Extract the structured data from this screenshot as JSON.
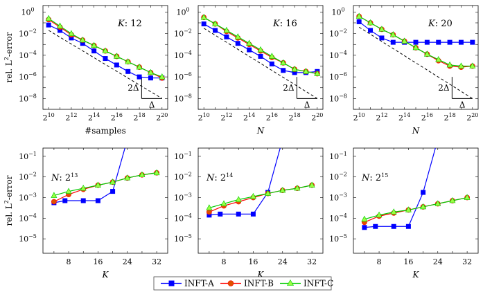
{
  "chart_data": [
    {
      "type": "line",
      "row": "top",
      "xscale": "log2",
      "yscale": "log10",
      "x": [
        10,
        11,
        12,
        13,
        14,
        15,
        16,
        17,
        18,
        19,
        20
      ],
      "xticks": [
        10,
        12,
        14,
        16,
        18,
        20
      ],
      "xtick_labels": [
        "2",
        "2",
        "2",
        "2",
        "2",
        "2"
      ],
      "xtick_sups": [
        "10",
        "12",
        "14",
        "16",
        "18",
        "20"
      ],
      "yticks": [
        0,
        -2,
        -4,
        -6,
        -8
      ],
      "ytick_labels": [
        "10",
        "10",
        "10",
        "10",
        "10"
      ],
      "ytick_sups": [
        "0",
        "−2",
        "−4",
        "−6",
        "−8"
      ],
      "xlim": [
        9.5,
        20.5
      ],
      "ylim": [
        -9,
        0.6
      ],
      "ylabel": "rel. L",
      "ylabel_sup": "2",
      "ylabel_suffix": "-error",
      "xlabel": "#samples",
      "xlabel_italic": false,
      "annotation": {
        "name": "K",
        "value": "12"
      },
      "series": [
        {
          "name": "INFT-A",
          "y": [
            -1.2,
            -1.7,
            -2.4,
            -2.9,
            -3.6,
            -4.3,
            -4.9,
            -5.5,
            -6.0,
            -6.1,
            -6.1
          ]
        },
        {
          "name": "INFT-B",
          "y": [
            -0.7,
            -1.4,
            -2.1,
            -2.6,
            -3.1,
            -3.6,
            -4.1,
            -4.6,
            -5.1,
            -5.6,
            -6.1
          ]
        },
        {
          "name": "INFT-C",
          "y": [
            -0.6,
            -1.3,
            -2.0,
            -2.6,
            -3.1,
            -3.6,
            -4.1,
            -4.6,
            -5.1,
            -5.6,
            -6.0
          ]
        }
      ],
      "reference_line": {
        "from": [
          10,
          -1.7
        ],
        "to": [
          20,
          -8.0
        ]
      },
      "slope_triangle": {
        "vertical_label": "2Δ",
        "horizontal_label": "Δ",
        "corner": [
          20,
          -7.0
        ],
        "run": 1.8
      }
    },
    {
      "type": "line",
      "row": "top",
      "xscale": "log2",
      "yscale": "log10",
      "x": [
        10,
        11,
        12,
        13,
        14,
        15,
        16,
        17,
        18,
        19,
        20
      ],
      "xticks": [
        10,
        12,
        14,
        16,
        18,
        20
      ],
      "xtick_labels": [
        "2",
        "2",
        "2",
        "2",
        "2",
        "2"
      ],
      "xtick_sups": [
        "10",
        "12",
        "14",
        "16",
        "18",
        "20"
      ],
      "yticks": [
        0,
        -2,
        -4,
        -6,
        -8
      ],
      "ytick_labels": [
        "10",
        "10",
        "10",
        "10",
        "10"
      ],
      "ytick_sups": [
        "0",
        "−2",
        "−4",
        "−6",
        "−8"
      ],
      "xlim": [
        9.5,
        20.5
      ],
      "ylim": [
        -9,
        0.6
      ],
      "xlabel": "N",
      "xlabel_italic": true,
      "annotation": {
        "name": "K",
        "value": "16"
      },
      "series": [
        {
          "name": "INFT-A",
          "y": [
            -1.1,
            -1.7,
            -2.3,
            -2.9,
            -3.5,
            -4.1,
            -4.8,
            -5.4,
            -5.6,
            -5.6,
            -5.5
          ]
        },
        {
          "name": "INFT-B",
          "y": [
            -0.5,
            -1.1,
            -1.8,
            -2.4,
            -3.0,
            -3.6,
            -4.2,
            -4.7,
            -5.3,
            -5.5,
            -5.7
          ]
        },
        {
          "name": "INFT-C",
          "y": [
            -0.5,
            -1.1,
            -1.7,
            -2.3,
            -2.9,
            -3.5,
            -4.1,
            -4.7,
            -5.3,
            -5.5,
            -5.7
          ]
        }
      ],
      "reference_line": {
        "from": [
          10,
          -1.5
        ],
        "to": [
          20,
          -8.0
        ]
      },
      "slope_triangle": {
        "vertical_label": "2Δ",
        "horizontal_label": "Δ",
        "corner": [
          20,
          -7.0
        ],
        "run": 1.8
      }
    },
    {
      "type": "line",
      "row": "top",
      "xscale": "log2",
      "yscale": "log10",
      "x": [
        10,
        11,
        12,
        13,
        14,
        15,
        16,
        17,
        18,
        19,
        20
      ],
      "xticks": [
        10,
        12,
        14,
        16,
        18,
        20
      ],
      "xtick_labels": [
        "2",
        "2",
        "2",
        "2",
        "2",
        "2"
      ],
      "xtick_sups": [
        "10",
        "12",
        "14",
        "16",
        "18",
        "20"
      ],
      "yticks": [
        0,
        -2,
        -4,
        -6,
        -8
      ],
      "ytick_labels": [
        "10",
        "10",
        "10",
        "10",
        "10"
      ],
      "ytick_sups": [
        "0",
        "−2",
        "−4",
        "−6",
        "−8"
      ],
      "xlim": [
        9.5,
        20.5
      ],
      "ylim": [
        -9,
        0.6
      ],
      "xlabel": "N",
      "xlabel_italic": true,
      "annotation": {
        "name": "K",
        "value": "20"
      },
      "series": [
        {
          "name": "INFT-A",
          "y": [
            -0.9,
            -1.7,
            -2.4,
            -2.8,
            -2.8,
            -2.8,
            -2.8,
            -2.8,
            -2.8,
            -2.8,
            -2.8
          ]
        },
        {
          "name": "INFT-B",
          "y": [
            -0.4,
            -1.0,
            -1.6,
            -2.1,
            -2.7,
            -3.3,
            -3.9,
            -4.5,
            -5.0,
            -5.1,
            -5.0
          ]
        },
        {
          "name": "INFT-C",
          "y": [
            -0.4,
            -1.0,
            -1.6,
            -2.1,
            -2.7,
            -3.3,
            -3.9,
            -4.4,
            -4.9,
            -5.0,
            -5.0
          ]
        }
      ],
      "reference_line": {
        "from": [
          10,
          -1.4
        ],
        "to": [
          20,
          -8.0
        ]
      },
      "slope_triangle": {
        "vertical_label": "2Δ",
        "horizontal_label": "Δ",
        "corner": [
          20,
          -7.0
        ],
        "run": 1.8
      }
    },
    {
      "type": "line",
      "row": "bottom",
      "xscale": "linear",
      "yscale": "log10",
      "x": [
        4,
        8,
        12,
        16,
        20,
        24,
        28,
        32
      ],
      "xticks": [
        8,
        16,
        24,
        32
      ],
      "xtick_labels": [
        "8",
        "16",
        "24",
        "32"
      ],
      "yticks": [
        -5,
        -4,
        -3,
        -2,
        -1
      ],
      "ytick_labels": [
        "10",
        "10",
        "10",
        "10",
        "10"
      ],
      "ytick_sups": [
        "−5",
        "−4",
        "−3",
        "−2",
        "−1"
      ],
      "xlim": [
        1,
        35
      ],
      "ylim": [
        -5.7,
        -0.6
      ],
      "ylabel": "rel. L",
      "ylabel_sup": "2",
      "ylabel_suffix": "-error",
      "xlabel": "K",
      "xlabel_italic": true,
      "annotation": {
        "name": "N",
        "value": "2",
        "value_sup": "13"
      },
      "series": [
        {
          "name": "INFT-A",
          "x": [
            4,
            7,
            12,
            16,
            20,
            23.5
          ],
          "y": [
            -3.25,
            -3.15,
            -3.15,
            -3.15,
            -2.7,
            -0.5
          ]
        },
        {
          "name": "INFT-B",
          "x": [
            4,
            8,
            12,
            16,
            20,
            24,
            28,
            32
          ],
          "y": [
            -3.2,
            -2.85,
            -2.6,
            -2.4,
            -2.25,
            -2.05,
            -1.9,
            -1.8
          ]
        },
        {
          "name": "INFT-C",
          "x": [
            4,
            8,
            12,
            16,
            20,
            24,
            28,
            32
          ],
          "y": [
            -2.9,
            -2.7,
            -2.55,
            -2.4,
            -2.25,
            -2.05,
            -1.9,
            -1.8
          ]
        }
      ]
    },
    {
      "type": "line",
      "row": "bottom",
      "xscale": "linear",
      "yscale": "log10",
      "x": [
        4,
        8,
        12,
        16,
        20,
        24,
        28,
        32
      ],
      "xticks": [
        8,
        16,
        24,
        32
      ],
      "xtick_labels": [
        "8",
        "16",
        "24",
        "32"
      ],
      "yticks": [
        -5,
        -4,
        -3,
        -2,
        -1
      ],
      "ytick_labels": [
        "10",
        "10",
        "10",
        "10",
        "10"
      ],
      "ytick_sups": [
        "−5",
        "−4",
        "−3",
        "−2",
        "−1"
      ],
      "xlim": [
        1,
        35
      ],
      "ylim": [
        -5.7,
        -0.6
      ],
      "xlabel": "K",
      "xlabel_italic": true,
      "annotation": {
        "name": "N",
        "value": "2",
        "value_sup": "14"
      },
      "series": [
        {
          "name": "INFT-A",
          "x": [
            4,
            7,
            12,
            16,
            20,
            23.5
          ],
          "y": [
            -3.85,
            -3.8,
            -3.8,
            -3.8,
            -2.75,
            -0.5
          ]
        },
        {
          "name": "INFT-B",
          "x": [
            4,
            8,
            12,
            16,
            20,
            24,
            28,
            32
          ],
          "y": [
            -3.7,
            -3.4,
            -3.2,
            -3.0,
            -2.8,
            -2.65,
            -2.55,
            -2.4
          ]
        },
        {
          "name": "INFT-C",
          "x": [
            4,
            8,
            12,
            16,
            20,
            24,
            28,
            32
          ],
          "y": [
            -3.5,
            -3.3,
            -3.1,
            -2.95,
            -2.8,
            -2.65,
            -2.55,
            -2.4
          ]
        }
      ]
    },
    {
      "type": "line",
      "row": "bottom",
      "xscale": "linear",
      "yscale": "log10",
      "x": [
        4,
        8,
        12,
        16,
        20,
        24,
        28,
        32
      ],
      "xticks": [
        8,
        16,
        24,
        32
      ],
      "xtick_labels": [
        "8",
        "16",
        "24",
        "32"
      ],
      "yticks": [
        -5,
        -4,
        -3,
        -2,
        -1
      ],
      "ytick_labels": [
        "10",
        "10",
        "10",
        "10",
        "10"
      ],
      "ytick_sups": [
        "−5",
        "−4",
        "−3",
        "−2",
        "−1"
      ],
      "xlim": [
        1,
        35
      ],
      "ylim": [
        -5.7,
        -0.6
      ],
      "xlabel": "K",
      "xlabel_italic": true,
      "annotation": {
        "name": "N",
        "value": "2",
        "value_sup": "15"
      },
      "series": [
        {
          "name": "INFT-A",
          "x": [
            4,
            7,
            12,
            16,
            20,
            23.5
          ],
          "y": [
            -4.45,
            -4.4,
            -4.4,
            -4.4,
            -2.75,
            -0.5
          ]
        },
        {
          "name": "INFT-B",
          "x": [
            4,
            8,
            12,
            16,
            20,
            24,
            28,
            32
          ],
          "y": [
            -4.2,
            -3.9,
            -3.75,
            -3.6,
            -3.45,
            -3.3,
            -3.15,
            -3.0
          ]
        },
        {
          "name": "INFT-C",
          "x": [
            4,
            8,
            12,
            16,
            20,
            24,
            28,
            32
          ],
          "y": [
            -4.05,
            -3.85,
            -3.7,
            -3.6,
            -3.45,
            -3.3,
            -3.15,
            -3.0
          ]
        }
      ]
    }
  ],
  "legend": {
    "placement": "bottom-center",
    "entries": [
      {
        "label": "INFT-A",
        "color": "#0000ff",
        "marker": "square"
      },
      {
        "label": "INFT-B",
        "color": "#ff0000",
        "marker": "circle"
      },
      {
        "label": "INFT-C",
        "color": "#00cc00",
        "marker": "triangle"
      }
    ]
  },
  "colors": {
    "INFT-A": "#0000ff",
    "INFT-B": "#ff0000",
    "INFT-C": "#00cc00",
    "marker_fill_B": "#e05000",
    "marker_fill_C": "#99ff44"
  }
}
